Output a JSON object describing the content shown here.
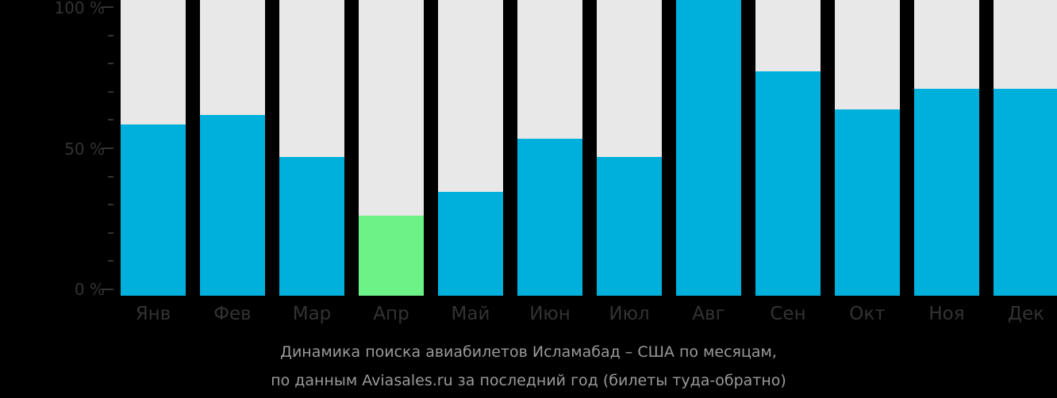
{
  "chart_data": {
    "type": "bar",
    "title": "Динамика поиска авиабилетов Исламабад – США по месяцам, по данным Aviasales.ru за последний год (билеты туда-обратно)",
    "xlabel": "",
    "ylabel": "",
    "ylim": [
      0,
      100
    ],
    "yticks": [
      "100 %",
      "50 %",
      "0 %"
    ],
    "grid": false,
    "categories": [
      "Янв",
      "Фев",
      "Мар",
      "Апр",
      "Май",
      "Июн",
      "Июл",
      "Авг",
      "Сен",
      "Окт",
      "Ноя",
      "Дек"
    ],
    "values": [
      58,
      61,
      47,
      27,
      35,
      53,
      47,
      100,
      76,
      63,
      70,
      70
    ],
    "highlight_index": 3,
    "colors": {
      "bar": "#00b0dc",
      "highlight": "#6cf287",
      "track": "#e8e8e8"
    }
  },
  "axis": {
    "y_labels": [
      "100 %",
      "50 %",
      "0 %"
    ]
  },
  "caption": {
    "line1": "Динамика поиска авиабилетов Исламабад – США по месяцам,",
    "line2": "по данным Aviasales.ru за последний год (билеты туда-обратно)"
  }
}
